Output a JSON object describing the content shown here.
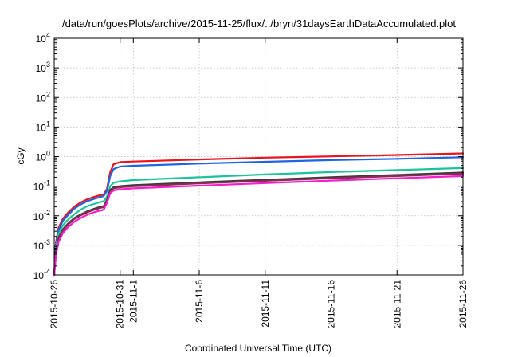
{
  "chart_data": {
    "type": "line",
    "title": "/data/run/goesPlots/archive/2015-11-25/flux/../bryn/31daysEarthDataAccumulated.plot",
    "xlabel": "Coordinated Universal Time (UTC)",
    "ylabel": "cGy",
    "yscale": "log",
    "xlim": [
      "2015-10-26",
      "2015-11-26"
    ],
    "ylim": [
      0.0001,
      10000
    ],
    "grid": true,
    "y_ticks": [
      {
        "value": 0.0001,
        "base": "10",
        "exp": "-4"
      },
      {
        "value": 0.001,
        "base": "10",
        "exp": "-3"
      },
      {
        "value": 0.01,
        "base": "10",
        "exp": "-2"
      },
      {
        "value": 0.1,
        "base": "10",
        "exp": "-1"
      },
      {
        "value": 1,
        "base": "10",
        "exp": "0"
      },
      {
        "value": 10,
        "base": "10",
        "exp": "1"
      },
      {
        "value": 100,
        "base": "10",
        "exp": "2"
      },
      {
        "value": 1000,
        "base": "10",
        "exp": "3"
      },
      {
        "value": 10000,
        "base": "10",
        "exp": "4"
      }
    ],
    "x_ticks": [
      {
        "value": "2015-10-26",
        "label": "2015-10-26"
      },
      {
        "value": "2015-10-31",
        "label": "2015-10-31"
      },
      {
        "value": "2015-11-01",
        "label": "2015-11-1"
      },
      {
        "value": "2015-11-06",
        "label": "2015-11-6"
      },
      {
        "value": "2015-11-11",
        "label": "2015-11-11"
      },
      {
        "value": "2015-11-16",
        "label": "2015-11-16"
      },
      {
        "value": "2015-11-21",
        "label": "2015-11-21"
      },
      {
        "value": "2015-11-26",
        "label": "2015-11-26"
      }
    ],
    "series": [
      {
        "color": "#e8141e",
        "points": [
          [
            "2015-10-26 00:00",
            0.0001
          ],
          [
            "2015-10-26 03:00",
            0.0012
          ],
          [
            "2015-10-26 08:00",
            0.004
          ],
          [
            "2015-10-26 16:00",
            0.008
          ],
          [
            "2015-10-27 00:00",
            0.012
          ],
          [
            "2015-10-27 12:00",
            0.02
          ],
          [
            "2015-10-28 00:00",
            0.028
          ],
          [
            "2015-10-28 12:00",
            0.036
          ],
          [
            "2015-10-29 00:00",
            0.043
          ],
          [
            "2015-10-29 12:00",
            0.05
          ],
          [
            "2015-10-29 18:00",
            0.053
          ],
          [
            "2015-10-30 00:00",
            0.08
          ],
          [
            "2015-10-30 06:00",
            0.3
          ],
          [
            "2015-10-30 12:00",
            0.55
          ],
          [
            "2015-10-31 00:00",
            0.65
          ],
          [
            "2015-11-01 00:00",
            0.68
          ],
          [
            "2015-11-06 00:00",
            0.8
          ],
          [
            "2015-11-11 00:00",
            0.92
          ],
          [
            "2015-11-16 00:00",
            1.02
          ],
          [
            "2015-11-21 00:00",
            1.13
          ],
          [
            "2015-11-26 00:00",
            1.28
          ]
        ]
      },
      {
        "color": "#1c64e0",
        "points": [
          [
            "2015-10-26 00:00",
            0.0001
          ],
          [
            "2015-10-26 03:00",
            0.001
          ],
          [
            "2015-10-26 08:00",
            0.0033
          ],
          [
            "2015-10-26 16:00",
            0.0068
          ],
          [
            "2015-10-27 00:00",
            0.01
          ],
          [
            "2015-10-27 12:00",
            0.017
          ],
          [
            "2015-10-28 00:00",
            0.024
          ],
          [
            "2015-10-28 12:00",
            0.031
          ],
          [
            "2015-10-29 00:00",
            0.037
          ],
          [
            "2015-10-29 12:00",
            0.043
          ],
          [
            "2015-10-29 18:00",
            0.046
          ],
          [
            "2015-10-30 00:00",
            0.07
          ],
          [
            "2015-10-30 06:00",
            0.22
          ],
          [
            "2015-10-30 12:00",
            0.38
          ],
          [
            "2015-10-31 00:00",
            0.46
          ],
          [
            "2015-11-01 00:00",
            0.49
          ],
          [
            "2015-11-06 00:00",
            0.58
          ],
          [
            "2015-11-11 00:00",
            0.67
          ],
          [
            "2015-11-16 00:00",
            0.76
          ],
          [
            "2015-11-21 00:00",
            0.84
          ],
          [
            "2015-11-26 00:00",
            0.95
          ]
        ]
      },
      {
        "color": "#1ec39b",
        "points": [
          [
            "2015-10-26 00:00",
            0.0001
          ],
          [
            "2015-10-26 03:00",
            0.0008
          ],
          [
            "2015-10-26 08:00",
            0.0024
          ],
          [
            "2015-10-26 16:00",
            0.0048
          ],
          [
            "2015-10-27 00:00",
            0.007
          ],
          [
            "2015-10-27 12:00",
            0.011
          ],
          [
            "2015-10-28 00:00",
            0.016
          ],
          [
            "2015-10-28 12:00",
            0.021
          ],
          [
            "2015-10-29 00:00",
            0.025
          ],
          [
            "2015-10-29 12:00",
            0.029
          ],
          [
            "2015-10-29 18:00",
            0.031
          ],
          [
            "2015-10-30 00:00",
            0.045
          ],
          [
            "2015-10-30 06:00",
            0.1
          ],
          [
            "2015-10-30 12:00",
            0.13
          ],
          [
            "2015-10-31 00:00",
            0.145
          ],
          [
            "2015-11-01 00:00",
            0.16
          ],
          [
            "2015-11-06 00:00",
            0.2
          ],
          [
            "2015-11-11 00:00",
            0.25
          ],
          [
            "2015-11-16 00:00",
            0.3
          ],
          [
            "2015-11-21 00:00",
            0.35
          ],
          [
            "2015-11-26 00:00",
            0.41
          ]
        ]
      },
      {
        "color": "#3a3a3a",
        "points": [
          [
            "2015-10-26 00:00",
            0.0001
          ],
          [
            "2015-10-26 03:00",
            0.0006
          ],
          [
            "2015-10-26 08:00",
            0.0018
          ],
          [
            "2015-10-26 16:00",
            0.0035
          ],
          [
            "2015-10-27 00:00",
            0.0052
          ],
          [
            "2015-10-27 12:00",
            0.0082
          ],
          [
            "2015-10-28 00:00",
            0.011
          ],
          [
            "2015-10-28 12:00",
            0.014
          ],
          [
            "2015-10-29 00:00",
            0.017
          ],
          [
            "2015-10-29 12:00",
            0.02
          ],
          [
            "2015-10-29 18:00",
            0.021
          ],
          [
            "2015-10-30 00:00",
            0.035
          ],
          [
            "2015-10-30 06:00",
            0.075
          ],
          [
            "2015-10-30 12:00",
            0.092
          ],
          [
            "2015-10-31 00:00",
            0.1
          ],
          [
            "2015-11-01 00:00",
            0.108
          ],
          [
            "2015-11-06 00:00",
            0.135
          ],
          [
            "2015-11-11 00:00",
            0.165
          ],
          [
            "2015-11-16 00:00",
            0.2
          ],
          [
            "2015-11-21 00:00",
            0.24
          ],
          [
            "2015-11-26 00:00",
            0.29
          ]
        ]
      },
      {
        "color": "#8b2a55",
        "points": [
          [
            "2015-10-26 00:00",
            0.0001
          ],
          [
            "2015-10-26 03:00",
            0.00055
          ],
          [
            "2015-10-26 08:00",
            0.0016
          ],
          [
            "2015-10-26 16:00",
            0.0032
          ],
          [
            "2015-10-27 00:00",
            0.0048
          ],
          [
            "2015-10-27 12:00",
            0.0076
          ],
          [
            "2015-10-28 00:00",
            0.0102
          ],
          [
            "2015-10-28 12:00",
            0.013
          ],
          [
            "2015-10-29 00:00",
            0.0158
          ],
          [
            "2015-10-29 12:00",
            0.0185
          ],
          [
            "2015-10-29 18:00",
            0.0195
          ],
          [
            "2015-10-30 00:00",
            0.032
          ],
          [
            "2015-10-30 06:00",
            0.068
          ],
          [
            "2015-10-30 12:00",
            0.084
          ],
          [
            "2015-10-31 00:00",
            0.092
          ],
          [
            "2015-11-01 00:00",
            0.099
          ],
          [
            "2015-11-06 00:00",
            0.124
          ],
          [
            "2015-11-11 00:00",
            0.152
          ],
          [
            "2015-11-16 00:00",
            0.185
          ],
          [
            "2015-11-21 00:00",
            0.22
          ],
          [
            "2015-11-26 00:00",
            0.265
          ]
        ]
      },
      {
        "color": "#f021c8",
        "points": [
          [
            "2015-10-26 00:00",
            0.0001
          ],
          [
            "2015-10-26 03:00",
            0.00045
          ],
          [
            "2015-10-26 08:00",
            0.0013
          ],
          [
            "2015-10-26 16:00",
            0.0026
          ],
          [
            "2015-10-27 00:00",
            0.0039
          ],
          [
            "2015-10-27 12:00",
            0.0062
          ],
          [
            "2015-10-28 00:00",
            0.0084
          ],
          [
            "2015-10-28 12:00",
            0.0108
          ],
          [
            "2015-10-29 00:00",
            0.013
          ],
          [
            "2015-10-29 12:00",
            0.015
          ],
          [
            "2015-10-29 18:00",
            0.016
          ],
          [
            "2015-10-30 00:00",
            0.027
          ],
          [
            "2015-10-30 06:00",
            0.058
          ],
          [
            "2015-10-30 12:00",
            0.071
          ],
          [
            "2015-10-31 00:00",
            0.078
          ],
          [
            "2015-11-01 00:00",
            0.084
          ],
          [
            "2015-11-06 00:00",
            0.104
          ],
          [
            "2015-11-11 00:00",
            0.127
          ],
          [
            "2015-11-16 00:00",
            0.155
          ],
          [
            "2015-11-21 00:00",
            0.185
          ],
          [
            "2015-11-26 00:00",
            0.22
          ]
        ]
      }
    ]
  }
}
